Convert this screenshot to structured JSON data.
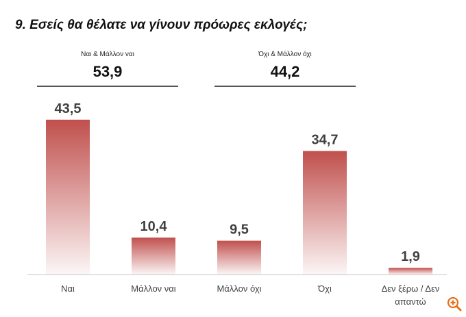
{
  "title": "9. Εσείς θα θέλατε να γίνουν πρόωρες εκλογές;",
  "groups": [
    {
      "label": "Ναι & Μάλλον ναι",
      "value": "53,9"
    },
    {
      "label": "Όχι & Μάλλον όχι",
      "value": "44,2"
    }
  ],
  "chart_data": {
    "type": "bar",
    "categories": [
      "Ναι",
      "Μάλλον ναι",
      "Μάλλον όχι",
      "Όχι",
      "Δεν ξέρω / Δεν απαντώ"
    ],
    "values": [
      43.5,
      10.4,
      9.5,
      34.7,
      1.9
    ],
    "data_labels": [
      "43,5",
      "10,4",
      "9,5",
      "34,7",
      "1,9"
    ],
    "title": "9. Εσείς θα θέλατε να γίνουν πρόωρες εκλογές;",
    "ylim": [
      0,
      45
    ],
    "grid": false,
    "bar_color": "#c0504d"
  },
  "icons": {
    "zoom": "zoom-in-icon",
    "zoom_color": "#e8701a"
  }
}
